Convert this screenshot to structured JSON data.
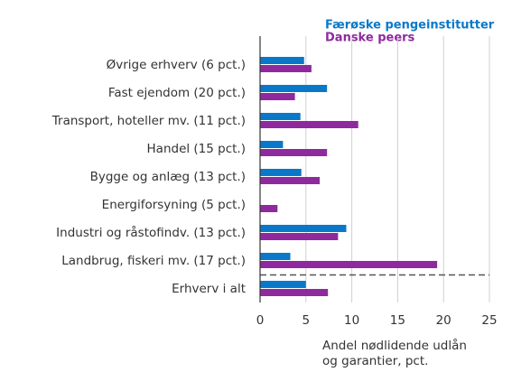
{
  "chart_data": {
    "type": "barh",
    "categories": [
      "Øvrige erhverv (6 pct.)",
      "Fast ejendom (20 pct.)",
      "Transport, hoteller mv. (11 pct.)",
      "Handel (15 pct.)",
      "Bygge og anlæg (13 pct.)",
      "Energiforsyning (5 pct.)",
      "Industri og råstofindv. (13 pct.)",
      "Landbrug, fiskeri mv. (17 pct.)",
      "Erhverv i alt"
    ],
    "series": [
      {
        "name": "Færøske pengeinstitutter",
        "color": "#0a78c8",
        "values": [
          4.8,
          7.3,
          4.4,
          2.5,
          4.5,
          0,
          9.4,
          3.3,
          5.0
        ]
      },
      {
        "name": "Danske peers",
        "color": "#8e2a9e",
        "values": [
          5.6,
          3.8,
          10.7,
          7.3,
          6.5,
          1.9,
          8.5,
          19.3,
          7.4
        ]
      }
    ],
    "xlabel": [
      "Andel nødlidende udlån",
      "og garantier, pct."
    ],
    "xlim": [
      0,
      25
    ],
    "xticks": [
      0,
      5,
      10,
      15,
      20,
      25
    ],
    "grid": true
  }
}
